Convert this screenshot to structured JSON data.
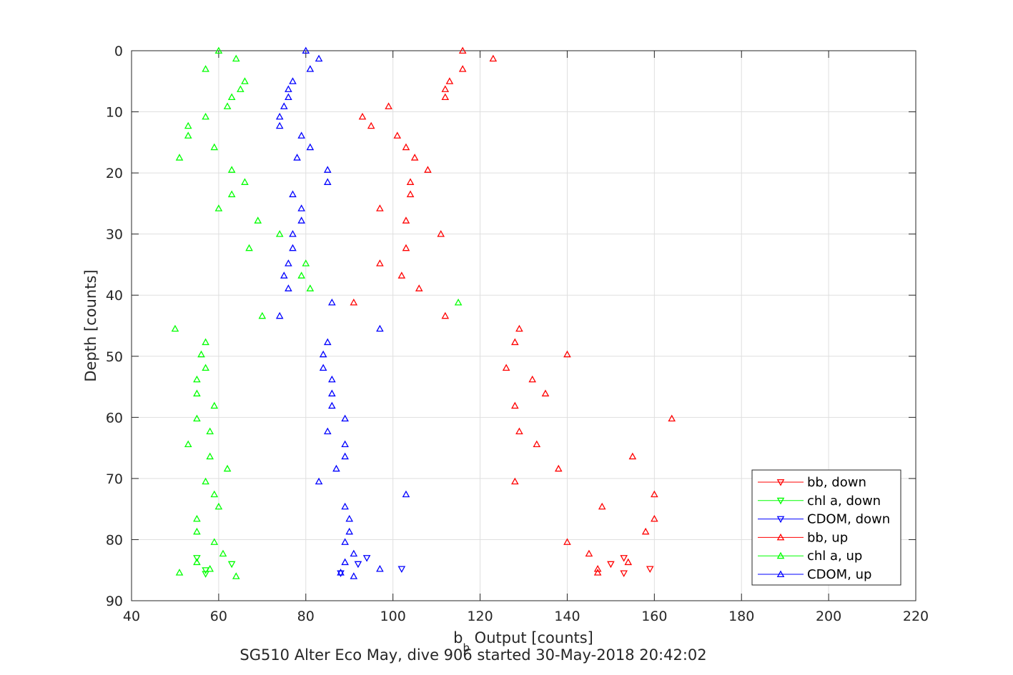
{
  "chart_data": {
    "type": "scatter",
    "title": "",
    "subtitle": "",
    "xlabel_main": "b",
    "xlabel_sub": "b",
    "xlabel_rest": " Output [counts]",
    "ylabel": "Depth [counts]",
    "caption": "SG510 Alter Eco May, dive 906 started 30-May-2018 20:42:02",
    "xlim": [
      40,
      220
    ],
    "ylim": [
      0,
      90
    ],
    "y_reversed": true,
    "x_ticks": [
      40,
      60,
      80,
      100,
      120,
      140,
      160,
      180,
      200,
      220
    ],
    "y_ticks": [
      0,
      10,
      20,
      30,
      40,
      50,
      60,
      70,
      80,
      90
    ],
    "grid": true,
    "legend_position": "bottom-right",
    "series": [
      {
        "name": "bb, down",
        "color": "#ff0000",
        "marker": "triangle-down",
        "points": [
          [
            153,
            83.0
          ],
          [
            150,
            84.0
          ],
          [
            159,
            84.8
          ],
          [
            153,
            85.5
          ]
        ]
      },
      {
        "name": "chl a, down",
        "color": "#00ff00",
        "marker": "triangle-down",
        "points": [
          [
            55,
            83.0
          ],
          [
            57,
            85.0
          ],
          [
            57,
            85.6
          ],
          [
            63,
            84.0
          ]
        ]
      },
      {
        "name": "CDOM, down",
        "color": "#0000ff",
        "marker": "triangle-down",
        "points": [
          [
            94,
            83.0
          ],
          [
            92,
            84.0
          ],
          [
            102,
            84.8
          ],
          [
            88,
            85.5
          ]
        ]
      },
      {
        "name": "bb, up",
        "color": "#ff0000",
        "marker": "triangle-up",
        "points": [
          [
            116,
            0.0
          ],
          [
            123,
            1.3
          ],
          [
            116,
            3.0
          ],
          [
            113,
            5.0
          ],
          [
            112,
            6.3
          ],
          [
            112,
            7.6
          ],
          [
            99,
            9.1
          ],
          [
            93,
            10.8
          ],
          [
            95,
            12.3
          ],
          [
            101,
            13.9
          ],
          [
            103,
            15.8
          ],
          [
            105,
            17.5
          ],
          [
            108,
            19.5
          ],
          [
            104,
            21.5
          ],
          [
            104,
            23.5
          ],
          [
            97,
            25.8
          ],
          [
            103,
            27.8
          ],
          [
            111,
            30.0
          ],
          [
            103,
            32.3
          ],
          [
            97,
            34.8
          ],
          [
            102,
            36.8
          ],
          [
            106,
            38.9
          ],
          [
            91,
            41.2
          ],
          [
            112,
            43.4
          ],
          [
            129,
            45.5
          ],
          [
            128,
            47.7
          ],
          [
            140,
            49.7
          ],
          [
            126,
            51.9
          ],
          [
            132,
            53.8
          ],
          [
            135,
            56.1
          ],
          [
            128,
            58.1
          ],
          [
            164,
            60.2
          ],
          [
            129,
            62.3
          ],
          [
            133,
            64.4
          ],
          [
            155,
            66.4
          ],
          [
            138,
            68.4
          ],
          [
            128,
            70.5
          ],
          [
            160,
            72.6
          ],
          [
            148,
            74.6
          ],
          [
            160,
            76.6
          ],
          [
            158,
            78.7
          ],
          [
            140,
            80.4
          ],
          [
            145,
            82.3
          ],
          [
            154,
            83.7
          ],
          [
            147,
            84.8
          ],
          [
            147,
            85.4
          ]
        ]
      },
      {
        "name": "chl a, up",
        "color": "#00ff00",
        "marker": "triangle-up",
        "points": [
          [
            60,
            0.0
          ],
          [
            64,
            1.3
          ],
          [
            57,
            3.0
          ],
          [
            66,
            5.0
          ],
          [
            65,
            6.3
          ],
          [
            63,
            7.6
          ],
          [
            62,
            9.1
          ],
          [
            57,
            10.8
          ],
          [
            53,
            12.3
          ],
          [
            53,
            13.9
          ],
          [
            59,
            15.8
          ],
          [
            51,
            17.5
          ],
          [
            63,
            19.5
          ],
          [
            66,
            21.5
          ],
          [
            63,
            23.5
          ],
          [
            60,
            25.8
          ],
          [
            69,
            27.8
          ],
          [
            74,
            30.0
          ],
          [
            67,
            32.3
          ],
          [
            80,
            34.8
          ],
          [
            79,
            36.8
          ],
          [
            81,
            38.9
          ],
          [
            115,
            41.2
          ],
          [
            70,
            43.4
          ],
          [
            50,
            45.5
          ],
          [
            57,
            47.7
          ],
          [
            56,
            49.7
          ],
          [
            57,
            51.9
          ],
          [
            55,
            53.8
          ],
          [
            55,
            56.1
          ],
          [
            59,
            58.1
          ],
          [
            55,
            60.2
          ],
          [
            58,
            62.3
          ],
          [
            53,
            64.4
          ],
          [
            58,
            66.4
          ],
          [
            62,
            68.4
          ],
          [
            57,
            70.5
          ],
          [
            59,
            72.6
          ],
          [
            60,
            74.6
          ],
          [
            55,
            76.6
          ],
          [
            55,
            78.7
          ],
          [
            59,
            80.4
          ],
          [
            61,
            82.3
          ],
          [
            55,
            83.7
          ],
          [
            58,
            84.8
          ],
          [
            51,
            85.4
          ],
          [
            64,
            86.0
          ]
        ]
      },
      {
        "name": "CDOM, up",
        "color": "#0000ff",
        "marker": "triangle-up",
        "points": [
          [
            80,
            0.0
          ],
          [
            83,
            1.3
          ],
          [
            81,
            3.0
          ],
          [
            77,
            5.0
          ],
          [
            76,
            6.3
          ],
          [
            76,
            7.6
          ],
          [
            75,
            9.1
          ],
          [
            74,
            10.8
          ],
          [
            74,
            12.3
          ],
          [
            79,
            13.9
          ],
          [
            81,
            15.8
          ],
          [
            78,
            17.5
          ],
          [
            85,
            19.5
          ],
          [
            85,
            21.5
          ],
          [
            77,
            23.5
          ],
          [
            79,
            25.8
          ],
          [
            79,
            27.8
          ],
          [
            77,
            30.0
          ],
          [
            77,
            32.3
          ],
          [
            76,
            34.8
          ],
          [
            75,
            36.8
          ],
          [
            76,
            38.9
          ],
          [
            86,
            41.2
          ],
          [
            74,
            43.4
          ],
          [
            97,
            45.5
          ],
          [
            85,
            47.7
          ],
          [
            84,
            49.7
          ],
          [
            84,
            51.9
          ],
          [
            86,
            53.8
          ],
          [
            86,
            56.1
          ],
          [
            86,
            58.1
          ],
          [
            89,
            60.2
          ],
          [
            85,
            62.3
          ],
          [
            89,
            64.4
          ],
          [
            89,
            66.4
          ],
          [
            87,
            68.4
          ],
          [
            83,
            70.5
          ],
          [
            103,
            72.6
          ],
          [
            89,
            74.6
          ],
          [
            90,
            76.6
          ],
          [
            90,
            78.7
          ],
          [
            89,
            80.4
          ],
          [
            91,
            82.3
          ],
          [
            89,
            83.7
          ],
          [
            97,
            84.8
          ],
          [
            88,
            85.4
          ],
          [
            91,
            86.0
          ]
        ]
      }
    ]
  }
}
